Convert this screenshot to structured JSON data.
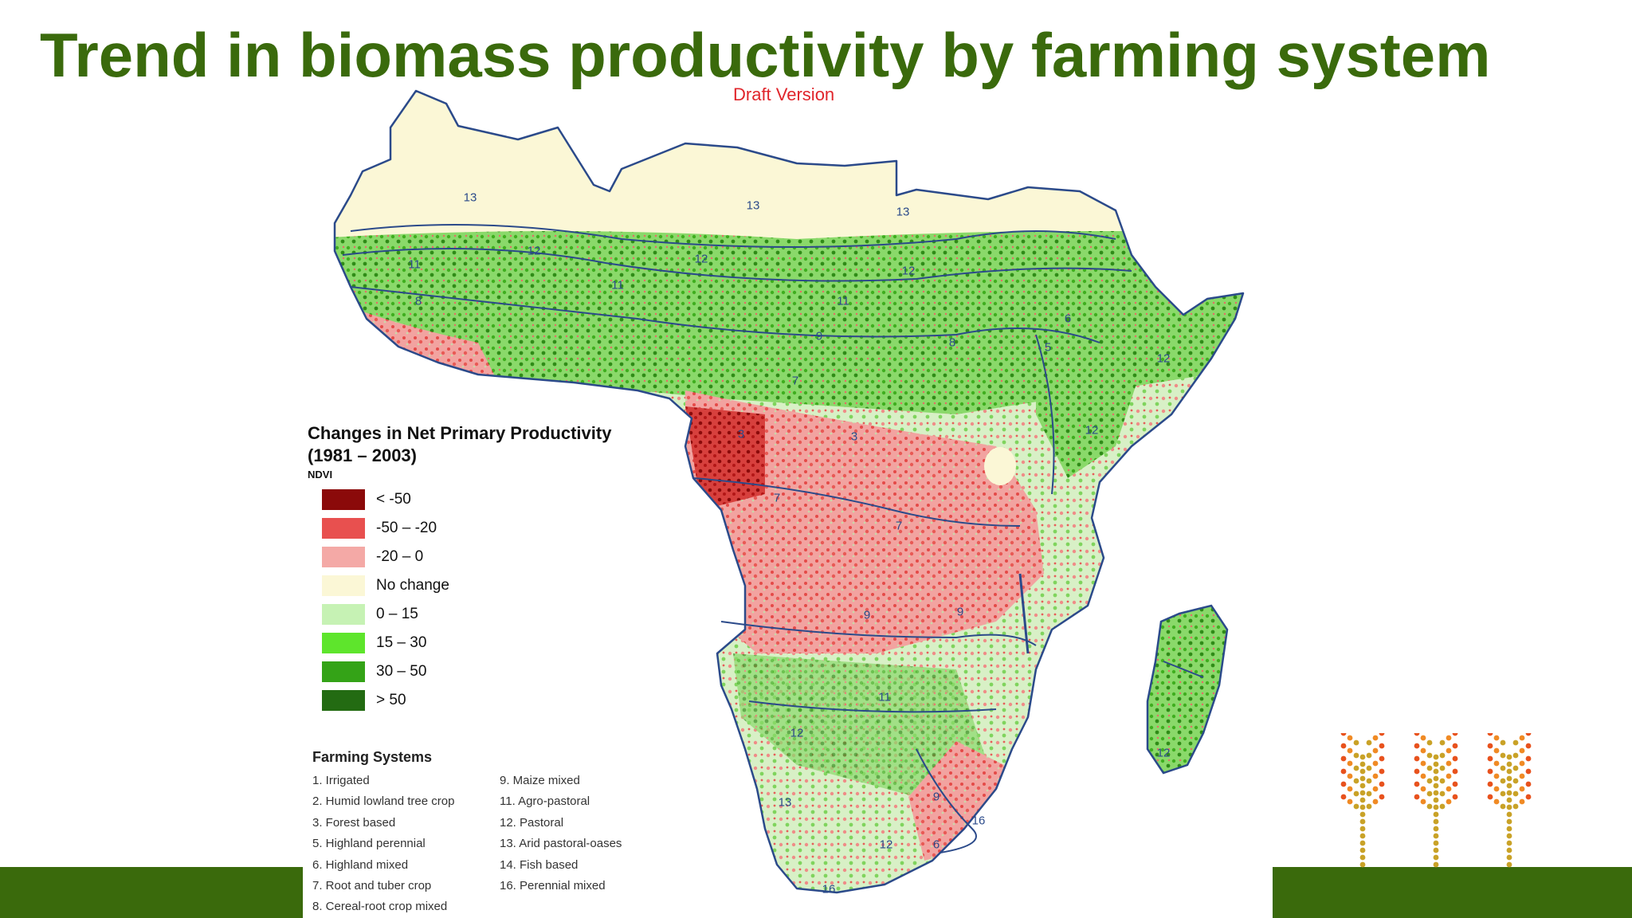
{
  "header": {
    "title": "Trend in biomass productivity by farming system",
    "subtitle": "Draft Version"
  },
  "colors": {
    "title_green": "#3a6a0c",
    "subtitle_red": "#e0252b",
    "bar_green": "#3a6a0c",
    "no_change": "#fbf7d6",
    "border_blue": "#2b4a8a"
  },
  "legend": {
    "title_line1": "Changes in Net Primary Productivity",
    "title_line2": "(1981 – 2003)",
    "subtitle": "NDVI",
    "classes": [
      {
        "label": "< -50",
        "color": "#8b0a0a"
      },
      {
        "label": "-50 – -20",
        "color": "#e8504f"
      },
      {
        "label": "-20 – 0",
        "color": "#f4a9a6"
      },
      {
        "label": "No change",
        "color": "#fbf7d6"
      },
      {
        "label": "0 – 15",
        "color": "#c6f2b4"
      },
      {
        "label": "15 – 30",
        "color": "#5ee52c"
      },
      {
        "label": "30 – 50",
        "color": "#34a317"
      },
      {
        "label": "> 50",
        "color": "#236b12"
      }
    ]
  },
  "farming_systems": {
    "title": "Farming Systems",
    "left": [
      "1. Irrigated",
      "2. Humid lowland tree crop",
      "3. Forest based",
      "5. Highland perennial",
      "6. Highland mixed",
      "7. Root and tuber crop",
      "8. Cereal-root crop mixed"
    ],
    "right": [
      "9. Maize mixed",
      "11. Agro-pastoral",
      "12. Pastoral",
      "13. Arid pastoral-oases",
      "14. Fish based",
      "16. Perennial mixed"
    ]
  },
  "map_labels": [
    {
      "text": "13"
    },
    {
      "text": "13"
    },
    {
      "text": "13"
    },
    {
      "text": "12"
    },
    {
      "text": "12"
    },
    {
      "text": "12"
    },
    {
      "text": "12"
    },
    {
      "text": "12"
    },
    {
      "text": "12"
    },
    {
      "text": "12"
    },
    {
      "text": "11"
    },
    {
      "text": "11"
    },
    {
      "text": "11"
    },
    {
      "text": "11"
    },
    {
      "text": "8"
    },
    {
      "text": "8"
    },
    {
      "text": "9"
    },
    {
      "text": "9"
    },
    {
      "text": "9"
    },
    {
      "text": "9"
    },
    {
      "text": "7"
    },
    {
      "text": "7"
    },
    {
      "text": "7"
    },
    {
      "text": "3"
    },
    {
      "text": "3"
    },
    {
      "text": "6"
    },
    {
      "text": "6"
    },
    {
      "text": "5"
    },
    {
      "text": "13"
    },
    {
      "text": "12"
    },
    {
      "text": "16"
    },
    {
      "text": "16"
    }
  ],
  "decoration": {
    "icon": "wheat-icon",
    "count": 3
  }
}
